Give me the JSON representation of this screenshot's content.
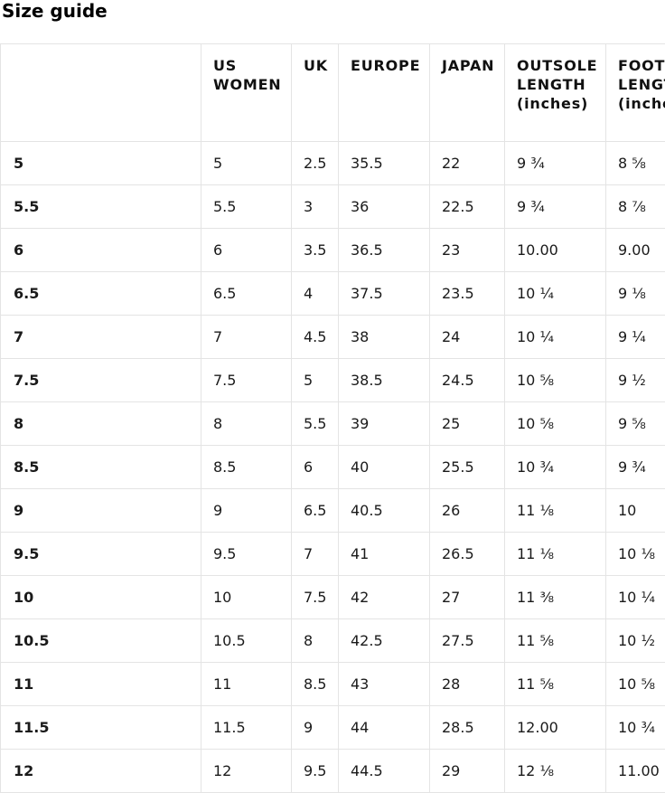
{
  "page": {
    "title": "Size guide"
  },
  "table": {
    "columns": [
      {
        "label": ""
      },
      {
        "label": "US WOMEN"
      },
      {
        "label": "UK"
      },
      {
        "label": "EUROPE"
      },
      {
        "label": "JAPAN"
      },
      {
        "label": "OUTSOLE LENGTH (inches)"
      },
      {
        "label": "FOOT LENGTH (inches)"
      }
    ],
    "rows": [
      [
        "5",
        "5",
        "2.5",
        "35.5",
        "22",
        "9 ¾",
        "8 ⅝"
      ],
      [
        "5.5",
        "5.5",
        "3",
        "36",
        "22.5",
        "9 ¾",
        "8 ⅞"
      ],
      [
        "6",
        "6",
        "3.5",
        "36.5",
        "23",
        "10.00",
        "9.00"
      ],
      [
        "6.5",
        "6.5",
        "4",
        "37.5",
        "23.5",
        "10 ¼",
        "9 ⅛"
      ],
      [
        "7",
        "7",
        "4.5",
        "38",
        "24",
        "10 ¼",
        "9 ¼"
      ],
      [
        "7.5",
        "7.5",
        "5",
        "38.5",
        "24.5",
        "10 ⅝",
        "9 ½"
      ],
      [
        "8",
        "8",
        "5.5",
        "39",
        "25",
        "10 ⅝",
        "9 ⅝"
      ],
      [
        "8.5",
        "8.5",
        "6",
        "40",
        "25.5",
        "10 ¾",
        "9 ¾"
      ],
      [
        "9",
        "9",
        "6.5",
        "40.5",
        "26",
        "11 ⅛",
        "10"
      ],
      [
        "9.5",
        "9.5",
        "7",
        "41",
        "26.5",
        "11 ⅛",
        "10 ⅛"
      ],
      [
        "10",
        "10",
        "7.5",
        "42",
        "27",
        "11 ⅜",
        "10 ¼"
      ],
      [
        "10.5",
        "10.5",
        "8",
        "42.5",
        "27.5",
        "11 ⅝",
        "10 ½"
      ],
      [
        "11",
        "11",
        "8.5",
        "43",
        "28",
        "11 ⅝",
        "10 ⅝"
      ],
      [
        "11.5",
        "11.5",
        "9",
        "44",
        "28.5",
        "12.00",
        "10 ¾"
      ],
      [
        "12",
        "12",
        "9.5",
        "44.5",
        "29",
        "12 ⅛",
        "11.00"
      ]
    ]
  }
}
